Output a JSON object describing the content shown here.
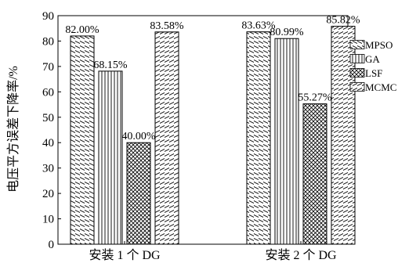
{
  "chart_data": {
    "type": "bar",
    "ylabel": "电压平方误差下降率/%",
    "ylim": [
      0,
      90
    ],
    "yticks": [
      0,
      10,
      20,
      30,
      40,
      50,
      60,
      70,
      80,
      90
    ],
    "grid": false,
    "legend_position": "right",
    "categories": [
      "安装 1 个 DG",
      "安装 2 个 DG"
    ],
    "series": [
      {
        "name": "MPSO",
        "values": [
          82.0,
          83.63
        ],
        "labels": [
          "82.00%",
          "83.63%"
        ],
        "pattern": "diag-down"
      },
      {
        "name": "GA",
        "values": [
          68.15,
          80.99
        ],
        "labels": [
          "68.15%",
          "80.99%"
        ],
        "pattern": "vertical"
      },
      {
        "name": "LSF",
        "values": [
          40.0,
          55.27
        ],
        "labels": [
          "40.00%",
          "55.27%"
        ],
        "pattern": "crosshatch"
      },
      {
        "name": "MCMC",
        "values": [
          83.58,
          85.82
        ],
        "labels": [
          "83.58%",
          "85.82%"
        ],
        "pattern": "diag-up"
      }
    ]
  }
}
